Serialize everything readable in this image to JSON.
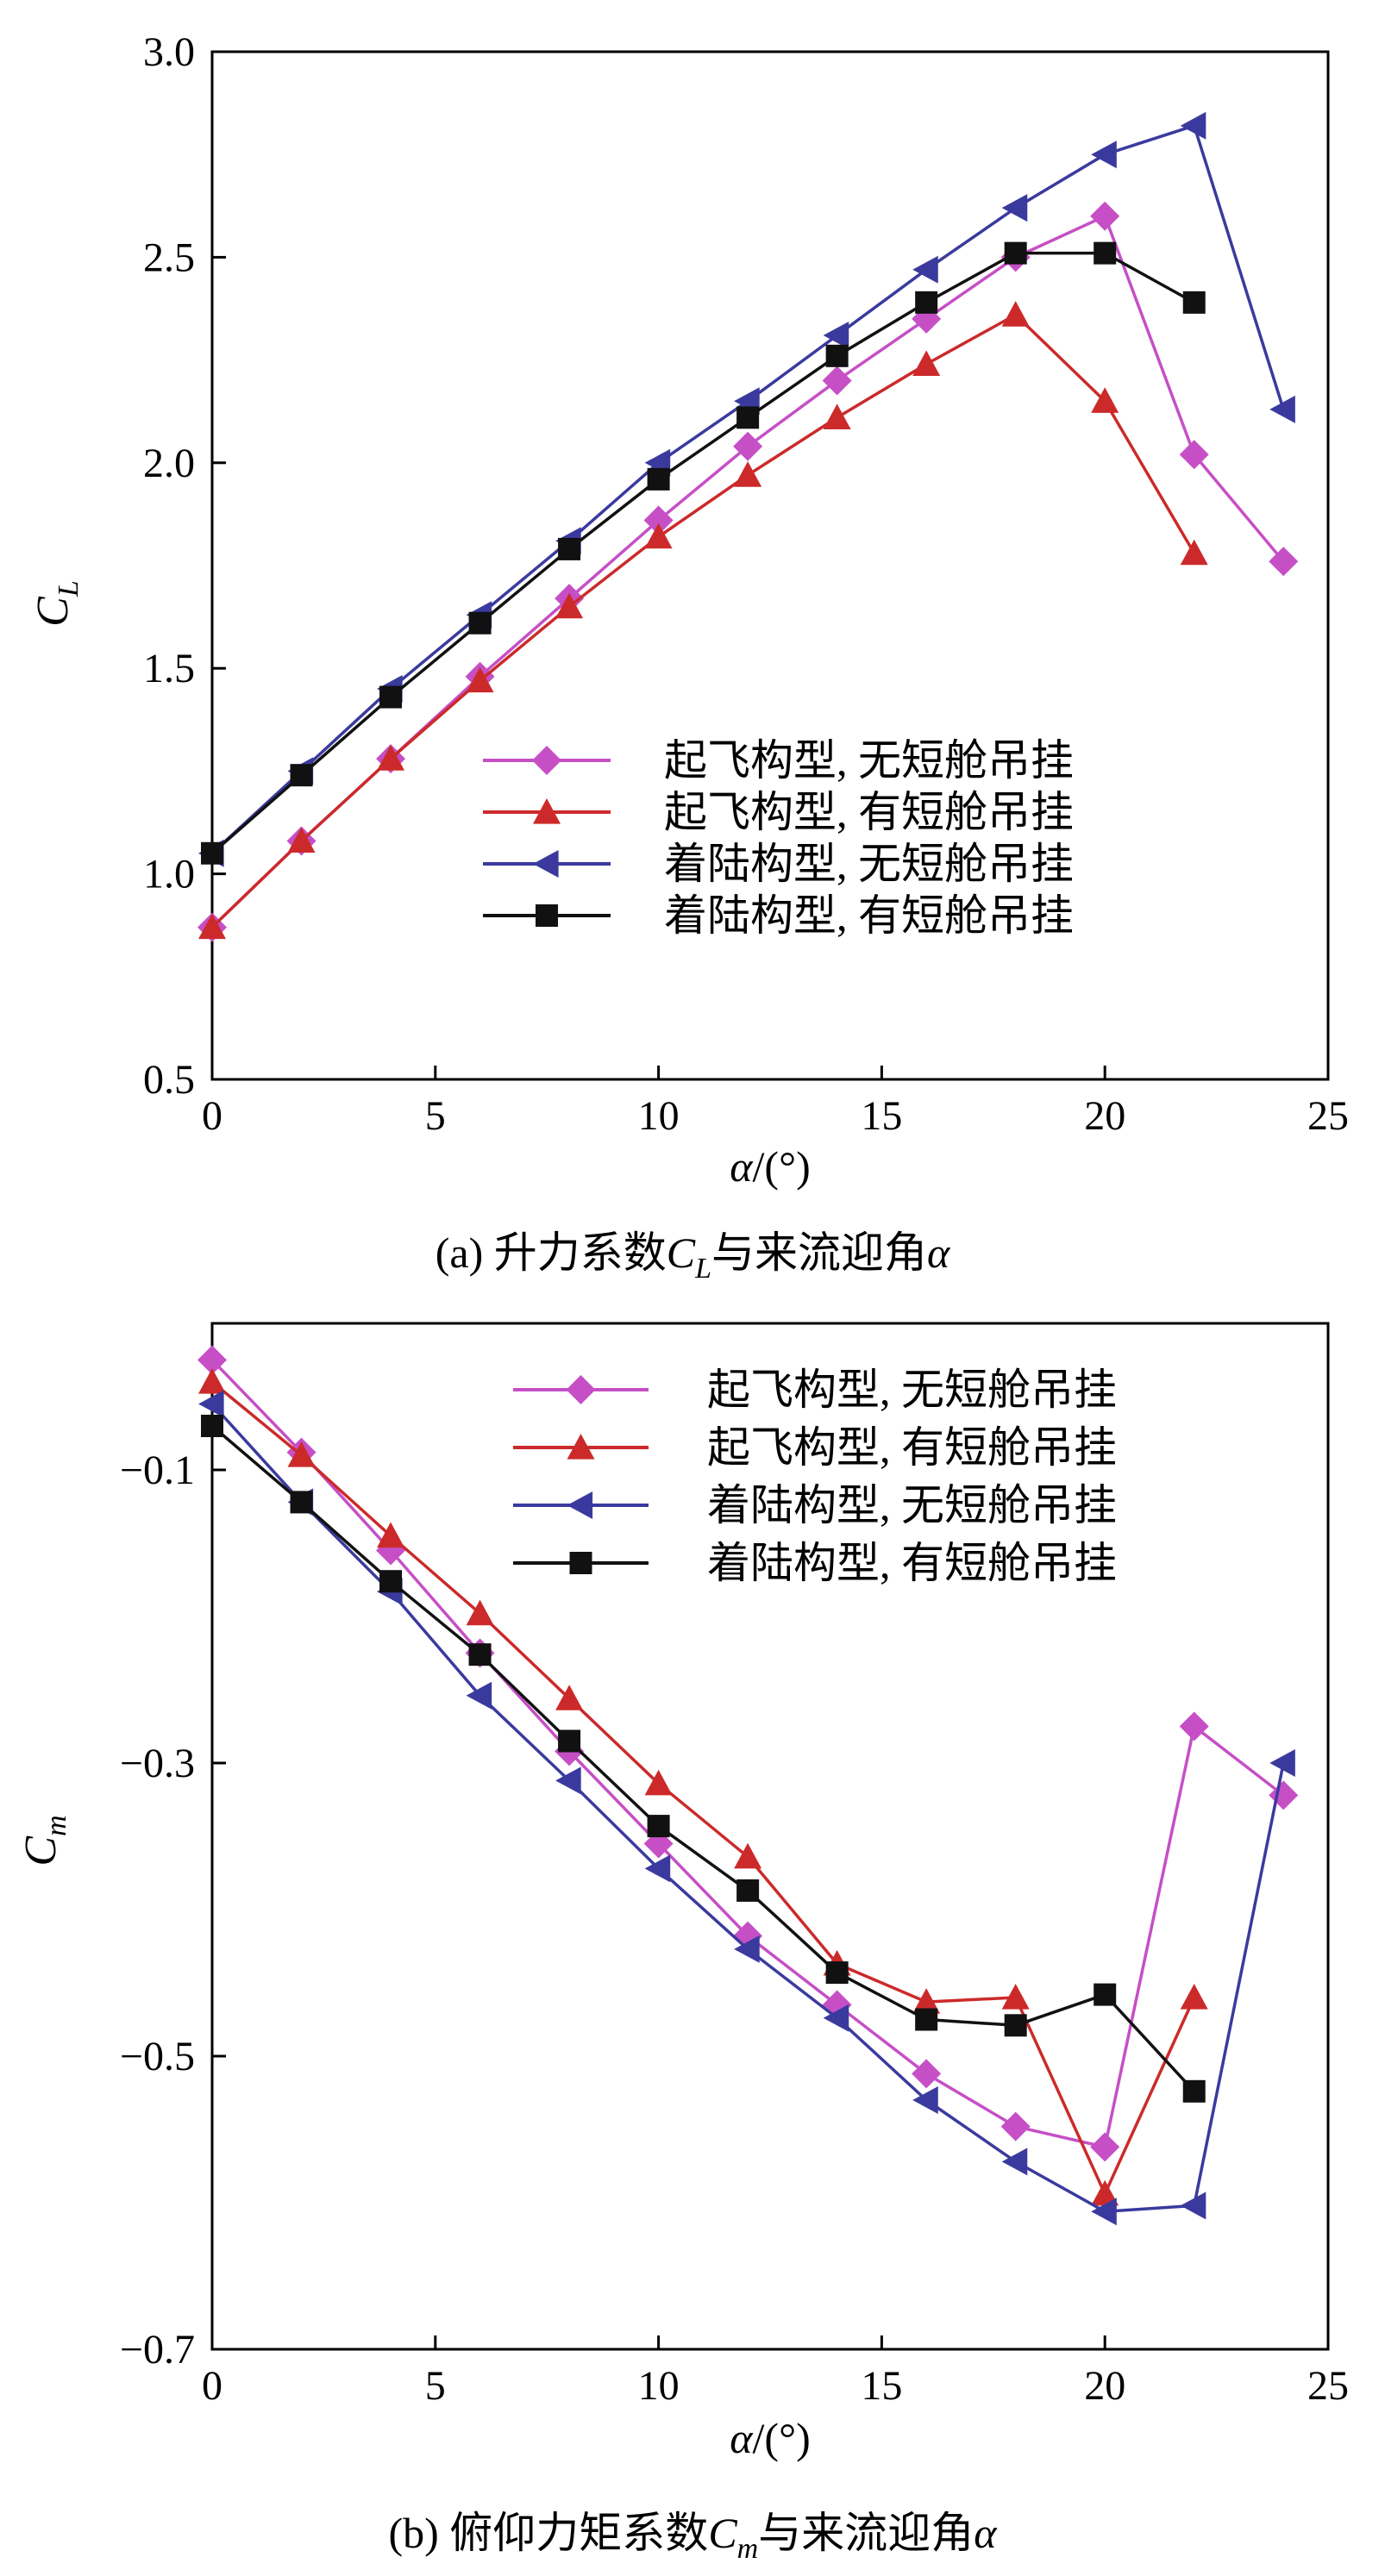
{
  "chart_data": [
    {
      "type": "line",
      "panel": "a",
      "caption": "(a) 升力系数C_L与来流迎角α",
      "caption_parts": {
        "prefix": "(a) 升力系数",
        "var_main": "C",
        "var_sub": "L",
        "suffix": "与来流迎角",
        "alpha": "α"
      },
      "xlabel_parts": {
        "alpha": "α",
        "unit": "/(°)"
      },
      "ylabel_parts": {
        "main": "C",
        "sub": "L"
      },
      "xlim": [
        0,
        25
      ],
      "ylim": [
        0.5,
        3.0
      ],
      "xticks": [
        0,
        5,
        10,
        15,
        20,
        25
      ],
      "xtick_labels": [
        "0",
        "5",
        "10",
        "15",
        "20",
        "25"
      ],
      "yticks": [
        0.5,
        1.0,
        1.5,
        2.0,
        2.5,
        3.0
      ],
      "ytick_labels": [
        "0.5",
        "1.0",
        "1.5",
        "2.0",
        "2.5",
        "3.0"
      ],
      "grid": false,
      "legend_position": "center-right",
      "series": [
        {
          "name": "起飞构型, 无短舱吊挂",
          "color": "#c64fc6",
          "marker": "diamond",
          "x": [
            0,
            2,
            4,
            6,
            8,
            10,
            12,
            14,
            16,
            18,
            20,
            22,
            24
          ],
          "y": [
            0.87,
            1.08,
            1.28,
            1.48,
            1.67,
            1.86,
            2.04,
            2.2,
            2.35,
            2.5,
            2.6,
            2.02,
            1.76
          ]
        },
        {
          "name": "起飞构型, 有短舱吊挂",
          "color": "#cc2a2a",
          "marker": "triangle-up",
          "x": [
            0,
            2,
            4,
            6,
            8,
            10,
            12,
            14,
            16,
            18,
            20,
            22
          ],
          "y": [
            0.87,
            1.08,
            1.28,
            1.47,
            1.65,
            1.82,
            1.97,
            2.11,
            2.24,
            2.36,
            2.15,
            1.78
          ]
        },
        {
          "name": "着陆构型, 无短舱吊挂",
          "color": "#3a3a9e",
          "marker": "triangle-left",
          "x": [
            0,
            2,
            4,
            6,
            8,
            10,
            12,
            14,
            16,
            18,
            20,
            22,
            24
          ],
          "y": [
            1.05,
            1.25,
            1.45,
            1.63,
            1.81,
            2.0,
            2.15,
            2.31,
            2.47,
            2.62,
            2.75,
            2.82,
            2.13
          ]
        },
        {
          "name": "着陆构型, 有短舱吊挂",
          "color": "#111111",
          "marker": "square",
          "x": [
            0,
            2,
            4,
            6,
            8,
            10,
            12,
            14,
            16,
            18,
            20,
            22
          ],
          "y": [
            1.05,
            1.24,
            1.43,
            1.61,
            1.79,
            1.96,
            2.11,
            2.26,
            2.39,
            2.51,
            2.51,
            2.39
          ]
        }
      ]
    },
    {
      "type": "line",
      "panel": "b",
      "caption": "(b) 俯仰力矩系数C_m与来流迎角α",
      "caption_parts": {
        "prefix": "(b) 俯仰力矩系数",
        "var_main": "C",
        "var_sub": "m",
        "suffix": "与来流迎角",
        "alpha": "α"
      },
      "xlabel_parts": {
        "alpha": "α",
        "unit": "/(°)"
      },
      "ylabel_parts": {
        "main": "C",
        "sub": "m"
      },
      "xlim": [
        0,
        25
      ],
      "ylim": [
        -0.7,
        0.0
      ],
      "xticks": [
        0,
        5,
        10,
        15,
        20,
        25
      ],
      "xtick_labels": [
        "0",
        "5",
        "10",
        "15",
        "20",
        "25"
      ],
      "yticks": [
        -0.7,
        -0.5,
        -0.3,
        -0.1
      ],
      "ytick_labels": [
        "−0.7",
        "−0.5",
        "−0.3",
        "−0.1"
      ],
      "grid": false,
      "legend_position": "top-right",
      "series": [
        {
          "name": "起飞构型, 无短舱吊挂",
          "color": "#c64fc6",
          "marker": "diamond",
          "x": [
            0,
            2,
            4,
            6,
            8,
            10,
            12,
            14,
            16,
            18,
            20,
            22,
            24
          ],
          "y": [
            -0.025,
            -0.088,
            -0.155,
            -0.225,
            -0.292,
            -0.355,
            -0.418,
            -0.465,
            -0.512,
            -0.548,
            -0.562,
            -0.275,
            -0.322
          ]
        },
        {
          "name": "起飞构型, 有短舱吊挂",
          "color": "#cc2a2a",
          "marker": "triangle-up",
          "x": [
            0,
            2,
            4,
            6,
            8,
            10,
            12,
            14,
            16,
            18,
            20,
            22
          ],
          "y": [
            -0.04,
            -0.09,
            -0.145,
            -0.198,
            -0.256,
            -0.314,
            -0.364,
            -0.437,
            -0.463,
            -0.46,
            -0.594,
            -0.46
          ]
        },
        {
          "name": "着陆构型, 无短舱吊挂",
          "color": "#3a3a9e",
          "marker": "triangle-left",
          "x": [
            0,
            2,
            4,
            6,
            8,
            10,
            12,
            14,
            16,
            18,
            20,
            22,
            24
          ],
          "y": [
            -0.055,
            -0.122,
            -0.183,
            -0.254,
            -0.312,
            -0.372,
            -0.427,
            -0.474,
            -0.53,
            -0.572,
            -0.606,
            -0.602,
            -0.3
          ]
        },
        {
          "name": "着陆构型, 有短舱吊挂",
          "color": "#111111",
          "marker": "square",
          "x": [
            0,
            2,
            4,
            6,
            8,
            10,
            12,
            14,
            16,
            18,
            20,
            22
          ],
          "y": [
            -0.07,
            -0.122,
            -0.176,
            -0.226,
            -0.285,
            -0.343,
            -0.387,
            -0.443,
            -0.475,
            -0.479,
            -0.458,
            -0.524
          ]
        }
      ]
    }
  ]
}
